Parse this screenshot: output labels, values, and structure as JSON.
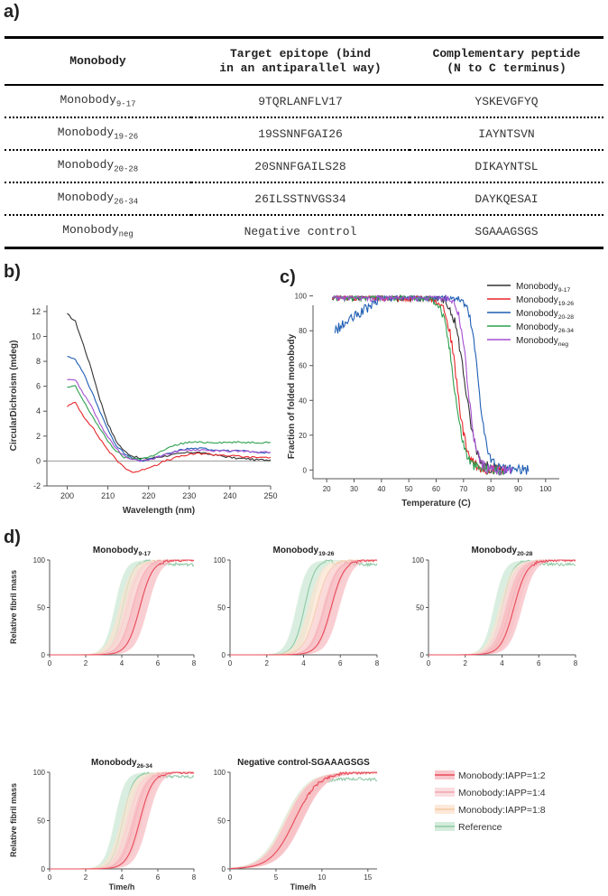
{
  "labels": {
    "a": "a)",
    "b": "b)",
    "c": "c)",
    "d": "d)"
  },
  "table": {
    "headers": [
      "Monobody",
      "Target epitope (bind\nin an antiparallel way)",
      "Complementary peptide\n(N to C terminus)"
    ],
    "rows": [
      {
        "name": "Monobody",
        "sub": "9-17",
        "epitope": "9TQRLANFLV17",
        "peptide": "YSKEVGFYQ"
      },
      {
        "name": "Monobody",
        "sub": "19-26",
        "epitope": "19SSNNFGAI26",
        "peptide": "IAYNTSVN"
      },
      {
        "name": "Monobody",
        "sub": "20-28",
        "epitope": "20SNNFGAILS28",
        "peptide": "DIKAYNTSL"
      },
      {
        "name": "Monobody",
        "sub": "26-34",
        "epitope": "26ILSSTNVGS34",
        "peptide": "DAYKQESAI"
      },
      {
        "name": "Monobody",
        "sub": "neg",
        "epitope": "Negative control",
        "peptide": "SGAAAGSGS"
      }
    ]
  },
  "colors": {
    "m917": "#333333",
    "m1926": "#e8262a",
    "m2028": "#1f5fb4",
    "m2634": "#2ea04f",
    "mneg": "#a54fd0",
    "r12": "#e84b5a",
    "r14": "#f2a5ad",
    "r18": "#f3c9a2",
    "ref": "#8fc9a4"
  },
  "chart_data": [
    {
      "id": "b",
      "type": "line",
      "xlabel": "Wavelength (nm)",
      "ylabel": "CircularDichroism (mdeg)",
      "xlim": [
        195,
        250
      ],
      "ylim": [
        -2,
        12.5
      ],
      "xticks": [
        200,
        210,
        220,
        230,
        240,
        250
      ],
      "yticks": [
        -2,
        0,
        2,
        4,
        6,
        8,
        10,
        12
      ],
      "series": [
        {
          "name": "Monobody9-17",
          "color": "#333333",
          "x": [
            200,
            202,
            204,
            206,
            208,
            210,
            212,
            214,
            216,
            218,
            220,
            222,
            224,
            226,
            228,
            230,
            232,
            234,
            236,
            238,
            240,
            242,
            244,
            246,
            248,
            250
          ],
          "y": [
            11.8,
            11.2,
            9.3,
            7.3,
            5.0,
            3.0,
            1.6,
            0.8,
            0.4,
            0.2,
            0.2,
            0.3,
            0.4,
            0.5,
            0.6,
            0.7,
            0.7,
            0.6,
            0.5,
            0.4,
            0.3,
            0.2,
            0.2,
            0.1,
            0.1,
            0.1
          ]
        },
        {
          "name": "Monobody19-26",
          "color": "#e8262a",
          "x": [
            200,
            202,
            204,
            206,
            208,
            210,
            212,
            214,
            216,
            218,
            220,
            222,
            224,
            226,
            228,
            230,
            232,
            234,
            236,
            238,
            240,
            242,
            244,
            246,
            248,
            250
          ],
          "y": [
            4.4,
            4.7,
            3.6,
            2.8,
            1.8,
            0.9,
            0.1,
            -0.5,
            -0.9,
            -0.8,
            -0.5,
            -0.3,
            0.0,
            0.2,
            0.4,
            0.5,
            0.6,
            0.6,
            0.5,
            0.5,
            0.4,
            0.4,
            0.3,
            0.3,
            0.3,
            0.3
          ]
        },
        {
          "name": "Monobody20-28",
          "color": "#1f5fb4",
          "x": [
            200,
            202,
            204,
            206,
            208,
            210,
            212,
            214,
            216,
            218,
            220,
            222,
            224,
            226,
            228,
            230,
            232,
            234,
            236,
            238,
            240,
            242,
            244,
            246,
            248,
            250
          ],
          "y": [
            8.4,
            8.2,
            7.0,
            5.6,
            4.0,
            2.5,
            1.3,
            0.6,
            0.2,
            0.0,
            0.1,
            0.3,
            0.5,
            0.7,
            0.9,
            1.0,
            1.0,
            1.0,
            0.9,
            0.9,
            0.8,
            0.8,
            0.8,
            0.7,
            0.7,
            0.7
          ]
        },
        {
          "name": "Monobody26-34",
          "color": "#2ea04f",
          "x": [
            200,
            202,
            204,
            206,
            208,
            210,
            212,
            214,
            216,
            218,
            220,
            222,
            224,
            226,
            228,
            230,
            232,
            234,
            236,
            238,
            240,
            242,
            244,
            246,
            248,
            250
          ],
          "y": [
            5.9,
            6.0,
            4.8,
            3.7,
            2.6,
            1.6,
            0.8,
            0.3,
            0.2,
            0.2,
            0.3,
            0.6,
            0.9,
            1.2,
            1.4,
            1.5,
            1.5,
            1.5,
            1.5,
            1.5,
            1.5,
            1.5,
            1.5,
            1.5,
            1.5,
            1.5
          ]
        },
        {
          "name": "Monobodyneg",
          "color": "#a54fd0",
          "x": [
            200,
            202,
            204,
            206,
            208,
            210,
            212,
            214,
            216,
            218,
            220,
            222,
            224,
            226,
            228,
            230,
            232,
            234,
            236,
            238,
            240,
            242,
            244,
            246,
            248,
            250
          ],
          "y": [
            6.6,
            6.5,
            5.4,
            4.4,
            3.0,
            1.9,
            1.0,
            0.4,
            0.1,
            0.0,
            0.1,
            0.3,
            0.5,
            0.7,
            0.8,
            0.9,
            0.9,
            0.9,
            0.8,
            0.8,
            0.8,
            0.8,
            0.8,
            0.7,
            0.7,
            0.7
          ]
        }
      ]
    },
    {
      "id": "c",
      "type": "line",
      "xlabel": "Temperature (C)",
      "ylabel": "Fraction of folded monobody",
      "xlim": [
        15,
        105
      ],
      "ylim": [
        -5,
        105
      ],
      "xticks": [
        20,
        30,
        40,
        50,
        60,
        70,
        80,
        90,
        100
      ],
      "yticks": [
        0,
        20,
        40,
        60,
        80,
        100
      ],
      "legend": [
        "Monobody",
        "Monobody",
        "Monobody",
        "Monobody",
        "Monobody"
      ],
      "legend_sub": [
        "9-17",
        "19-26",
        "20-28",
        "26-34",
        "neg"
      ],
      "series": [
        {
          "name": "Monobody9-17",
          "color": "#333333",
          "mid": 70.5,
          "k": 1.4,
          "start": 22,
          "end": 86
        },
        {
          "name": "Monobody19-26",
          "color": "#e8262a",
          "mid": 67.5,
          "k": 1.6,
          "start": 22,
          "end": 85
        },
        {
          "name": "Monobody20-28",
          "color": "#1f5fb4",
          "mid": 75.5,
          "k": 1.8,
          "start": 23,
          "end": 94,
          "low_start": 80
        },
        {
          "name": "Monobody26-34",
          "color": "#2ea04f",
          "mid": 66.5,
          "k": 1.5,
          "start": 22,
          "end": 85
        },
        {
          "name": "Monobodyneg",
          "color": "#a54fd0",
          "mid": 71.5,
          "k": 1.9,
          "start": 22,
          "end": 88
        }
      ]
    },
    {
      "id": "d",
      "type": "area",
      "ylabel": "Relative fibril mass",
      "xlabel": "Time/h",
      "ylim": [
        0,
        100
      ],
      "yticks": [
        0,
        50,
        100
      ],
      "legend": [
        "Monobody:IAPP=1:2",
        "Monobody:IAPP=1:4",
        "Monobody:IAPP=1:8",
        "Reference"
      ],
      "subplots": [
        {
          "title": "Monobody",
          "title_sub": "9-17",
          "xlim": [
            0,
            8
          ],
          "xticks": [
            0,
            2,
            4,
            6,
            8
          ],
          "mids": [
            5.0,
            4.6,
            4.3,
            4.05
          ],
          "width": [
            0.22,
            0.22,
            0.22,
            0.18
          ]
        },
        {
          "title": "Monobody",
          "title_sub": "19-26",
          "xlim": [
            0,
            8
          ],
          "xticks": [
            0,
            2,
            4,
            6,
            8
          ],
          "mids": [
            5.5,
            5.15,
            4.7,
            4.05
          ],
          "width": [
            0.22,
            0.22,
            0.22,
            0.18
          ]
        },
        {
          "title": "Monobody",
          "title_sub": "20-28",
          "xlim": [
            0,
            8
          ],
          "xticks": [
            0,
            2,
            4,
            6,
            8
          ],
          "mids": [
            4.65,
            4.45,
            4.3,
            4.0
          ],
          "width": [
            0.22,
            0.22,
            0.22,
            0.18
          ]
        },
        {
          "title": "Monobody",
          "title_sub": "26-34",
          "xlim": [
            0,
            8
          ],
          "xticks": [
            0,
            2,
            4,
            6,
            8
          ],
          "mids": [
            5.0,
            4.7,
            4.4,
            4.05
          ],
          "width": [
            0.22,
            0.22,
            0.22,
            0.18
          ]
        },
        {
          "title": "Negative control-SGAAAGSGS",
          "title_sub": "",
          "xlim": [
            0,
            16
          ],
          "xticks": [
            0,
            5,
            10,
            15
          ],
          "mids": [
            7.0,
            7.0,
            6.8,
            6.7
          ],
          "width": [
            0.4,
            0.4,
            0.4,
            0.4
          ]
        }
      ]
    }
  ]
}
